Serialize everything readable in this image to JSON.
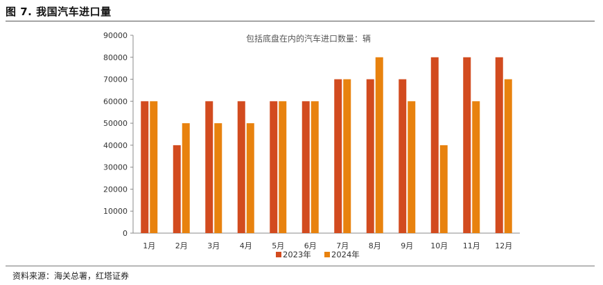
{
  "title": "图 7. 我国汽车进口量",
  "source": "资料来源：海关总署，红塔证券",
  "chart_data": {
    "type": "bar",
    "annotation": "包括底盘在内的汽车进口数量：辆",
    "categories": [
      "1月",
      "2月",
      "3月",
      "4月",
      "5月",
      "6月",
      "7月",
      "8月",
      "9月",
      "10月",
      "11月",
      "12月"
    ],
    "y_ticks": [
      "0",
      "10000",
      "20000",
      "30000",
      "40000",
      "50000",
      "60000",
      "70000",
      "80000",
      "90000"
    ],
    "ylim": [
      0,
      90000
    ],
    "grid": false,
    "legend_position": "bottom",
    "series": [
      {
        "name": "2023年",
        "color": "#D24B1F",
        "values": [
          60000,
          40000,
          60000,
          60000,
          60000,
          60000,
          70000,
          70000,
          70000,
          80000,
          80000,
          80000
        ]
      },
      {
        "name": "2024年",
        "color": "#E8820E",
        "values": [
          60000,
          50000,
          50000,
          50000,
          60000,
          60000,
          70000,
          80000,
          60000,
          40000,
          60000,
          70000
        ]
      }
    ]
  }
}
